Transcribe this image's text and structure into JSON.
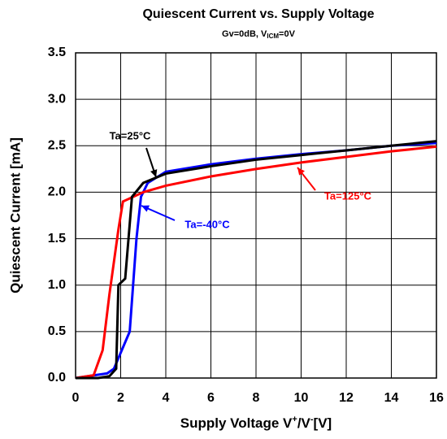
{
  "chart_data": {
    "type": "line",
    "title": "Quiescent Current vs. Supply Voltage",
    "subtitle": [
      "Gv=0dB, V",
      "ICM",
      "=0V"
    ],
    "x_label": [
      "Supply Voltage V",
      "+",
      "/V",
      "-",
      "[V]"
    ],
    "y_label": "Quiescent Current [mA]",
    "xlim": [
      0,
      16
    ],
    "ylim": [
      0,
      3.5
    ],
    "xticks": [
      0,
      2,
      4,
      6,
      8,
      10,
      12,
      14,
      16
    ],
    "yticks": [
      {
        "value": 0,
        "label": "0.0"
      },
      0.5,
      {
        "value": 1,
        "label": "1.0"
      },
      1.5,
      {
        "value": 2,
        "label": "2.0"
      },
      2.5,
      {
        "value": 3,
        "label": "3.0"
      },
      3.5
    ],
    "grid": true,
    "series": [
      {
        "name": "Ta=25°C",
        "color": "#000000",
        "x": [
          0,
          1,
          1.5,
          1.8,
          1.9,
          2.2,
          2.5,
          3,
          4,
          6,
          8,
          10,
          12,
          14,
          16
        ],
        "values": [
          0,
          0,
          0.02,
          0.1,
          1.0,
          1.07,
          1.95,
          2.1,
          2.2,
          2.28,
          2.35,
          2.4,
          2.45,
          2.5,
          2.55
        ]
      },
      {
        "name": "Ta=-40°C",
        "color": "#0000ff",
        "x": [
          0,
          1.4,
          1.7,
          2.4,
          2.7,
          2.9,
          3.2,
          4,
          6,
          8,
          10,
          12,
          14,
          16
        ],
        "values": [
          0,
          0.05,
          0.1,
          0.5,
          1.5,
          1.95,
          2.1,
          2.22,
          2.3,
          2.36,
          2.41,
          2.45,
          2.5,
          2.53
        ]
      },
      {
        "name": "Ta=125°C",
        "color": "#ff0000",
        "x": [
          0,
          0.8,
          1.2,
          1.5,
          1.9,
          2.1,
          3,
          4,
          6,
          8,
          10,
          12,
          14,
          16
        ],
        "values": [
          0,
          0.03,
          0.3,
          0.9,
          1.6,
          1.9,
          2.0,
          2.07,
          2.17,
          2.25,
          2.32,
          2.38,
          2.44,
          2.49
        ]
      }
    ]
  }
}
